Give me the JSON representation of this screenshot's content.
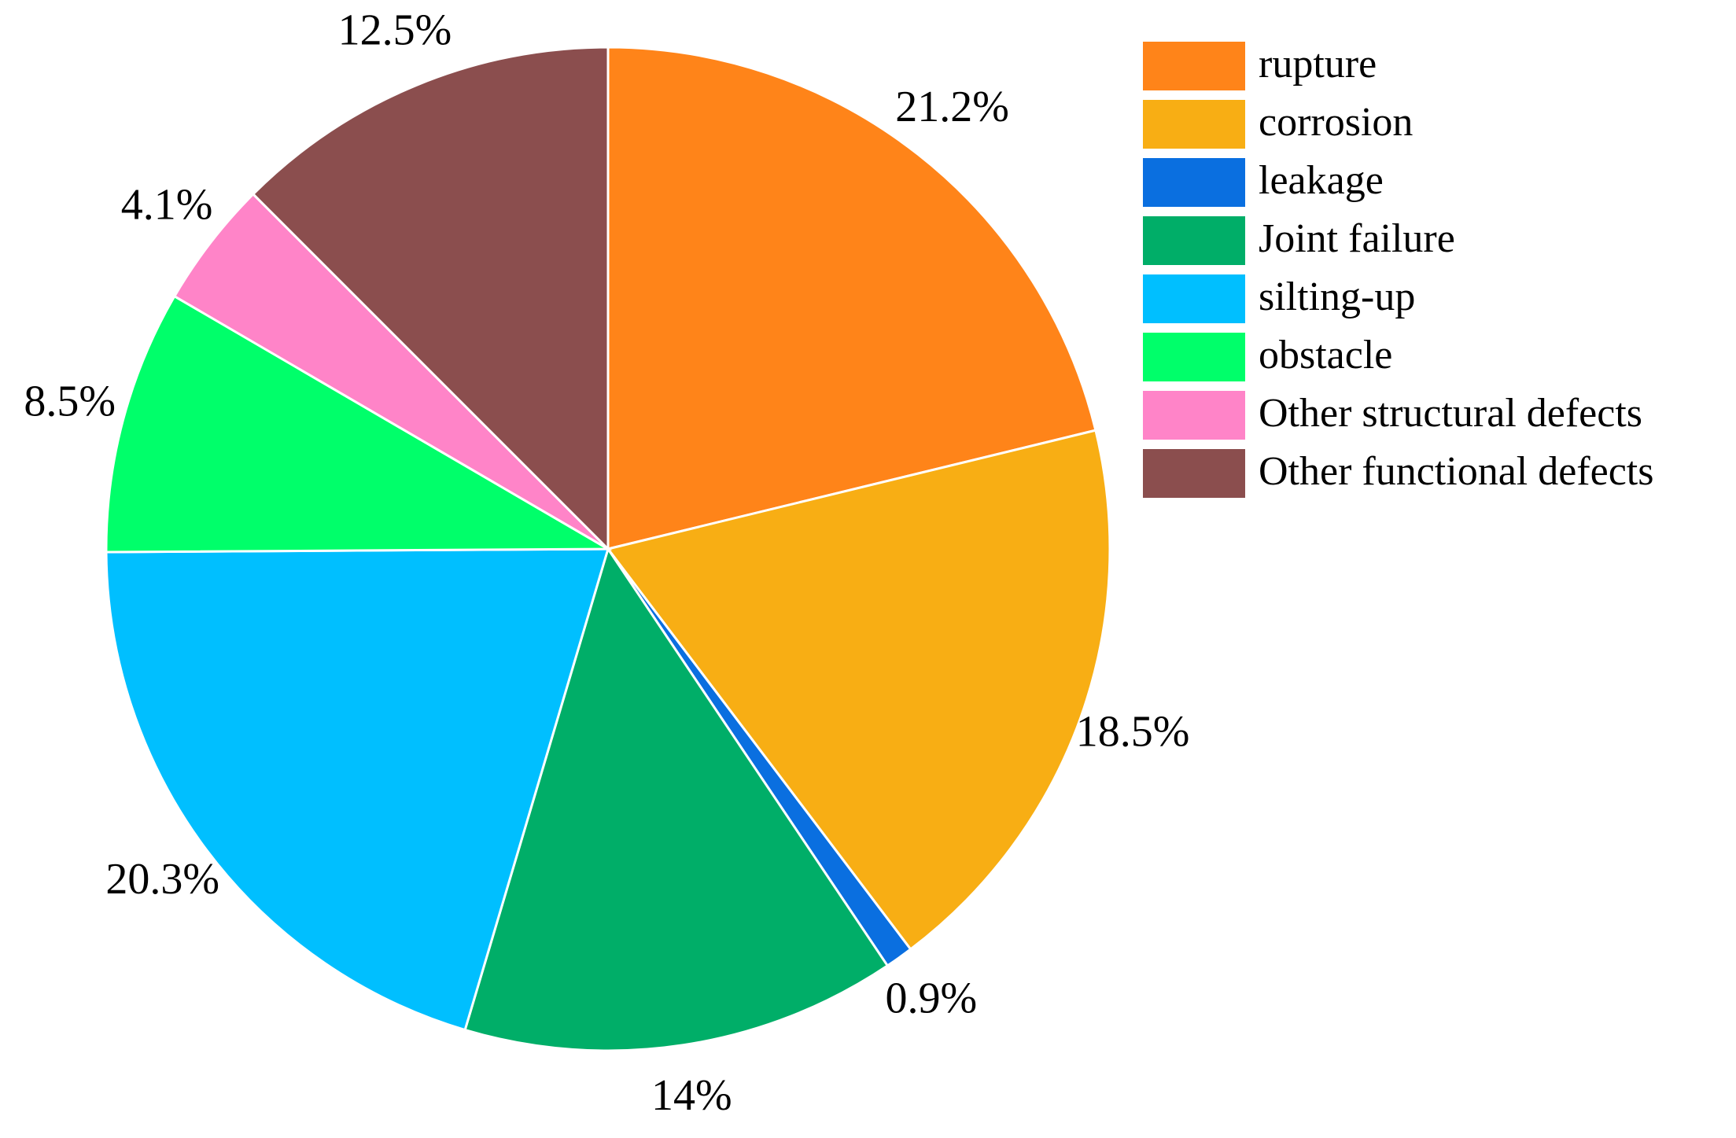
{
  "chart_data": {
    "type": "pie",
    "categories": [
      "rupture",
      "corrosion",
      "leakage",
      "Joint failure",
      "silting-up",
      "obstacle",
      "Other structural defects",
      "Other functional defects"
    ],
    "values": [
      21.2,
      18.5,
      0.9,
      14,
      20.3,
      8.5,
      4.1,
      12.5
    ],
    "value_labels": [
      "21.2%",
      "18.5%",
      "0.9%",
      "14%",
      "20.3%",
      "8.5%",
      "4.1%",
      "12.5%"
    ],
    "colors": [
      "#ff8419",
      "#f8ae14",
      "#0a6fe0",
      "#00ae68",
      "#00bfff",
      "#00ff6a",
      "#ff84c8",
      "#8b4e4e"
    ]
  }
}
